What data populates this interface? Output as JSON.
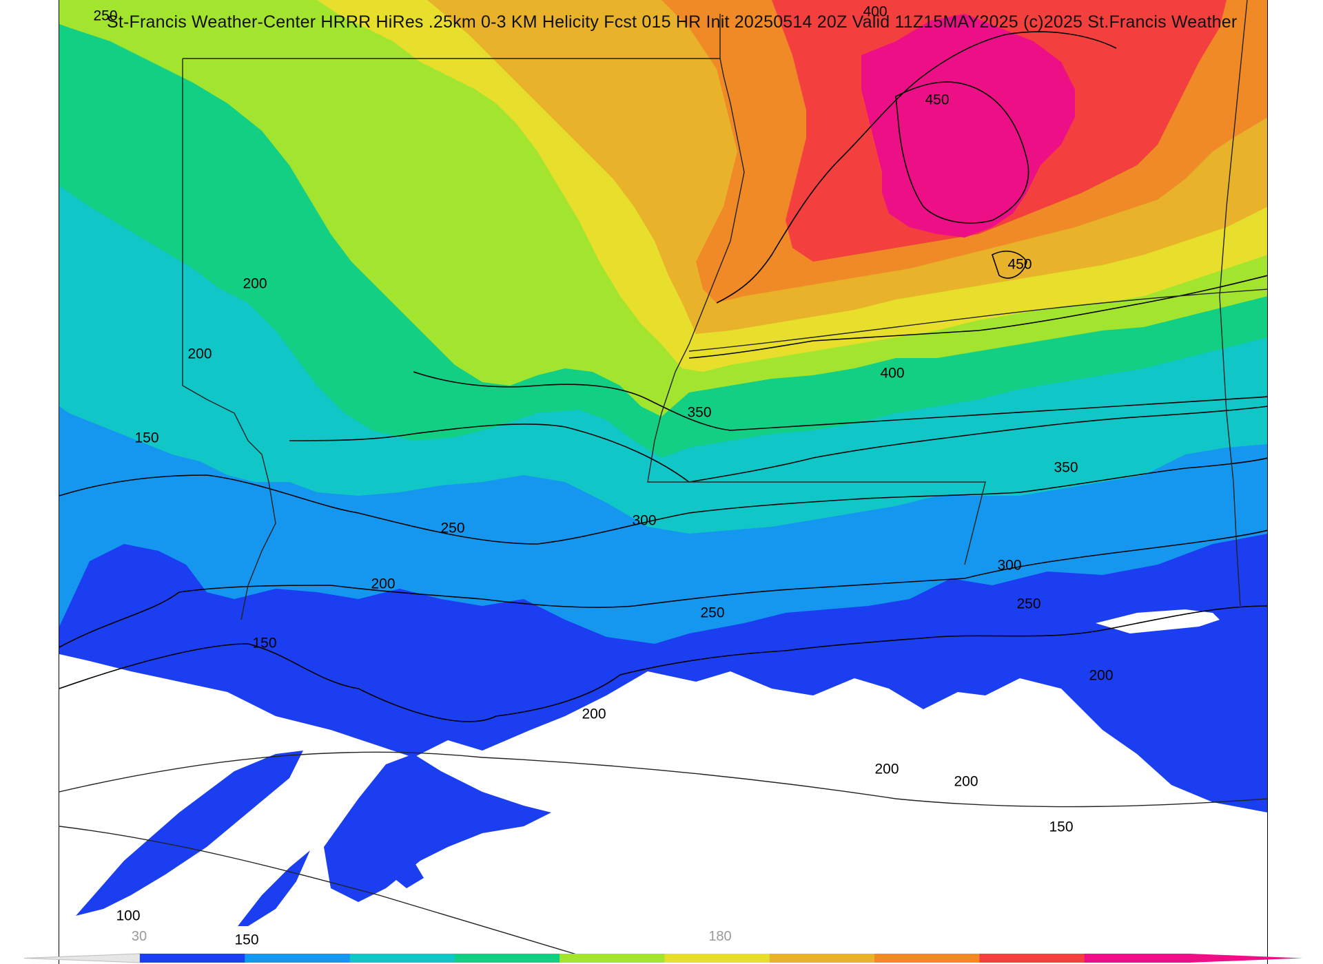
{
  "title": "St-Francis Weather-Center HRRR HiRes .25km 0-3 KM Helicity Fcst 015 HR Init 20250514 20Z  Valid 11Z15MAY2025    (c)2025 St.Francis Weather",
  "contour_labels": [
    "250",
    "400",
    "450",
    "450",
    "400",
    "350",
    "350",
    "300",
    "300",
    "250",
    "250",
    "250",
    "200",
    "200",
    "200",
    "200",
    "200",
    "200",
    "200",
    "150",
    "150",
    "150",
    "150",
    "100"
  ],
  "colorbar": {
    "colors": [
      "#1a3ef0",
      "#1597ef",
      "#10c6c6",
      "#12cf84",
      "#a3e52e",
      "#e8df2c",
      "#e8b22a",
      "#ef8a27",
      "#f43f3f",
      "#ed0f85"
    ],
    "tick_labels": [
      "30",
      "180"
    ]
  },
  "legend_colors": {
    "blue": "#1a3ef0",
    "light-blue": "#1597ef",
    "teal": "#10c6c6",
    "green": "#12cf84",
    "lime": "#a3e52e",
    "yellow": "#e8df2c",
    "gold": "#e8b22a",
    "orange": "#ef8a27",
    "red": "#f43f3f",
    "magenta": "#ed0f85"
  }
}
